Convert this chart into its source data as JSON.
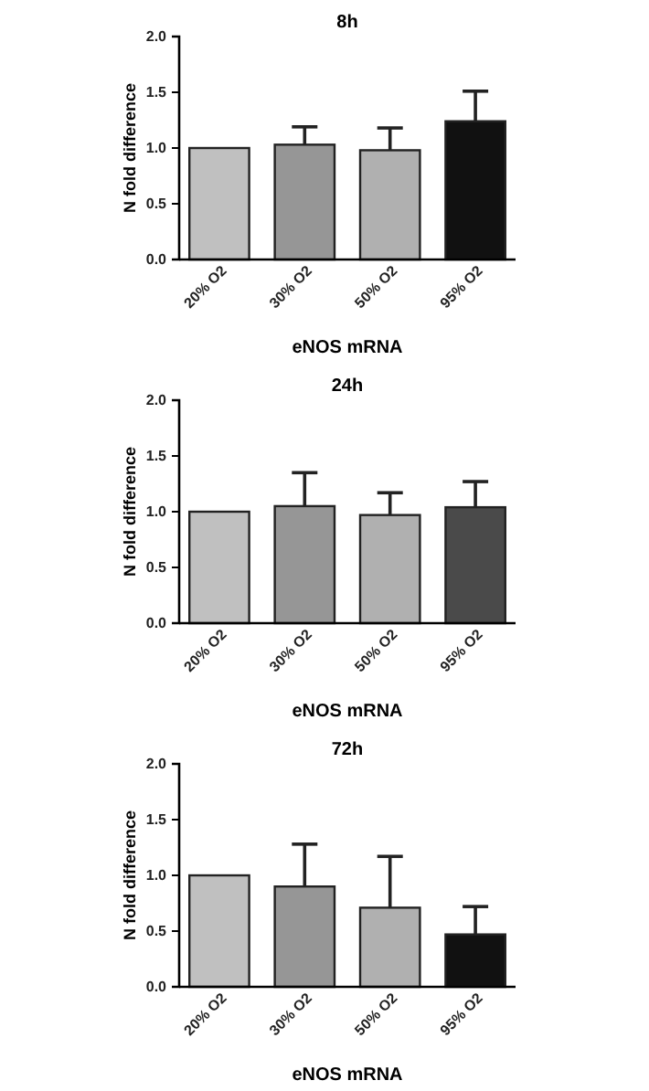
{
  "chart_data": [
    {
      "type": "bar",
      "title": "8h",
      "xlabel": "eNOS mRNA",
      "ylabel": "N fold difference",
      "categories": [
        "20% O2",
        "30% O2",
        "50% O2",
        "95% O2"
      ],
      "values": [
        1.0,
        1.03,
        0.98,
        1.24
      ],
      "errors": [
        null,
        [
          1.03,
          1.19
        ],
        [
          0.98,
          1.18
        ],
        [
          1.24,
          1.51
        ]
      ],
      "colors": [
        "#c0c0c0",
        "#969696",
        "#b0b0b0",
        "#111111"
      ],
      "ylim": [
        0,
        2
      ],
      "yticks": [
        {
          "value": 0,
          "label": "0.0"
        },
        {
          "value": 0.5,
          "label": "0.5"
        },
        {
          "value": 1,
          "label": "1.0"
        },
        {
          "value": 1.5,
          "label": "1.5"
        },
        {
          "value": 2,
          "label": "2.0"
        }
      ],
      "grid": false
    },
    {
      "type": "bar",
      "title": "24h",
      "xlabel": "eNOS mRNA",
      "ylabel": "N fold difference",
      "categories": [
        "20% O2",
        "30% O2",
        "50% O2",
        "95% O2"
      ],
      "values": [
        1.0,
        1.05,
        0.97,
        1.04
      ],
      "errors": [
        null,
        [
          1.05,
          1.35
        ],
        [
          0.97,
          1.17
        ],
        [
          1.04,
          1.27
        ]
      ],
      "colors": [
        "#c0c0c0",
        "#969696",
        "#b0b0b0",
        "#4a4a4a"
      ],
      "ylim": [
        0,
        2
      ],
      "yticks": [
        {
          "value": 0,
          "label": "0.0"
        },
        {
          "value": 0.5,
          "label": "0.5"
        },
        {
          "value": 1,
          "label": "1.0"
        },
        {
          "value": 1.5,
          "label": "1.5"
        },
        {
          "value": 2,
          "label": "2.0"
        }
      ],
      "grid": false
    },
    {
      "type": "bar",
      "title": "72h",
      "xlabel": "eNOS mRNA",
      "ylabel": "N fold difference",
      "categories": [
        "20% O2",
        "30% O2",
        "50% O2",
        "95% O2"
      ],
      "values": [
        1.0,
        0.9,
        0.71,
        0.47
      ],
      "errors": [
        null,
        [
          0.9,
          1.28
        ],
        [
          0.71,
          1.17
        ],
        [
          0.47,
          0.72
        ]
      ],
      "colors": [
        "#c0c0c0",
        "#969696",
        "#b0b0b0",
        "#111111"
      ],
      "ylim": [
        0,
        2
      ],
      "yticks": [
        {
          "value": 0,
          "label": "0.0"
        },
        {
          "value": 0.5,
          "label": "0.5"
        },
        {
          "value": 1,
          "label": "1.0"
        },
        {
          "value": 1.5,
          "label": "1.5"
        },
        {
          "value": 2,
          "label": "2.0"
        }
      ],
      "grid": false
    }
  ]
}
